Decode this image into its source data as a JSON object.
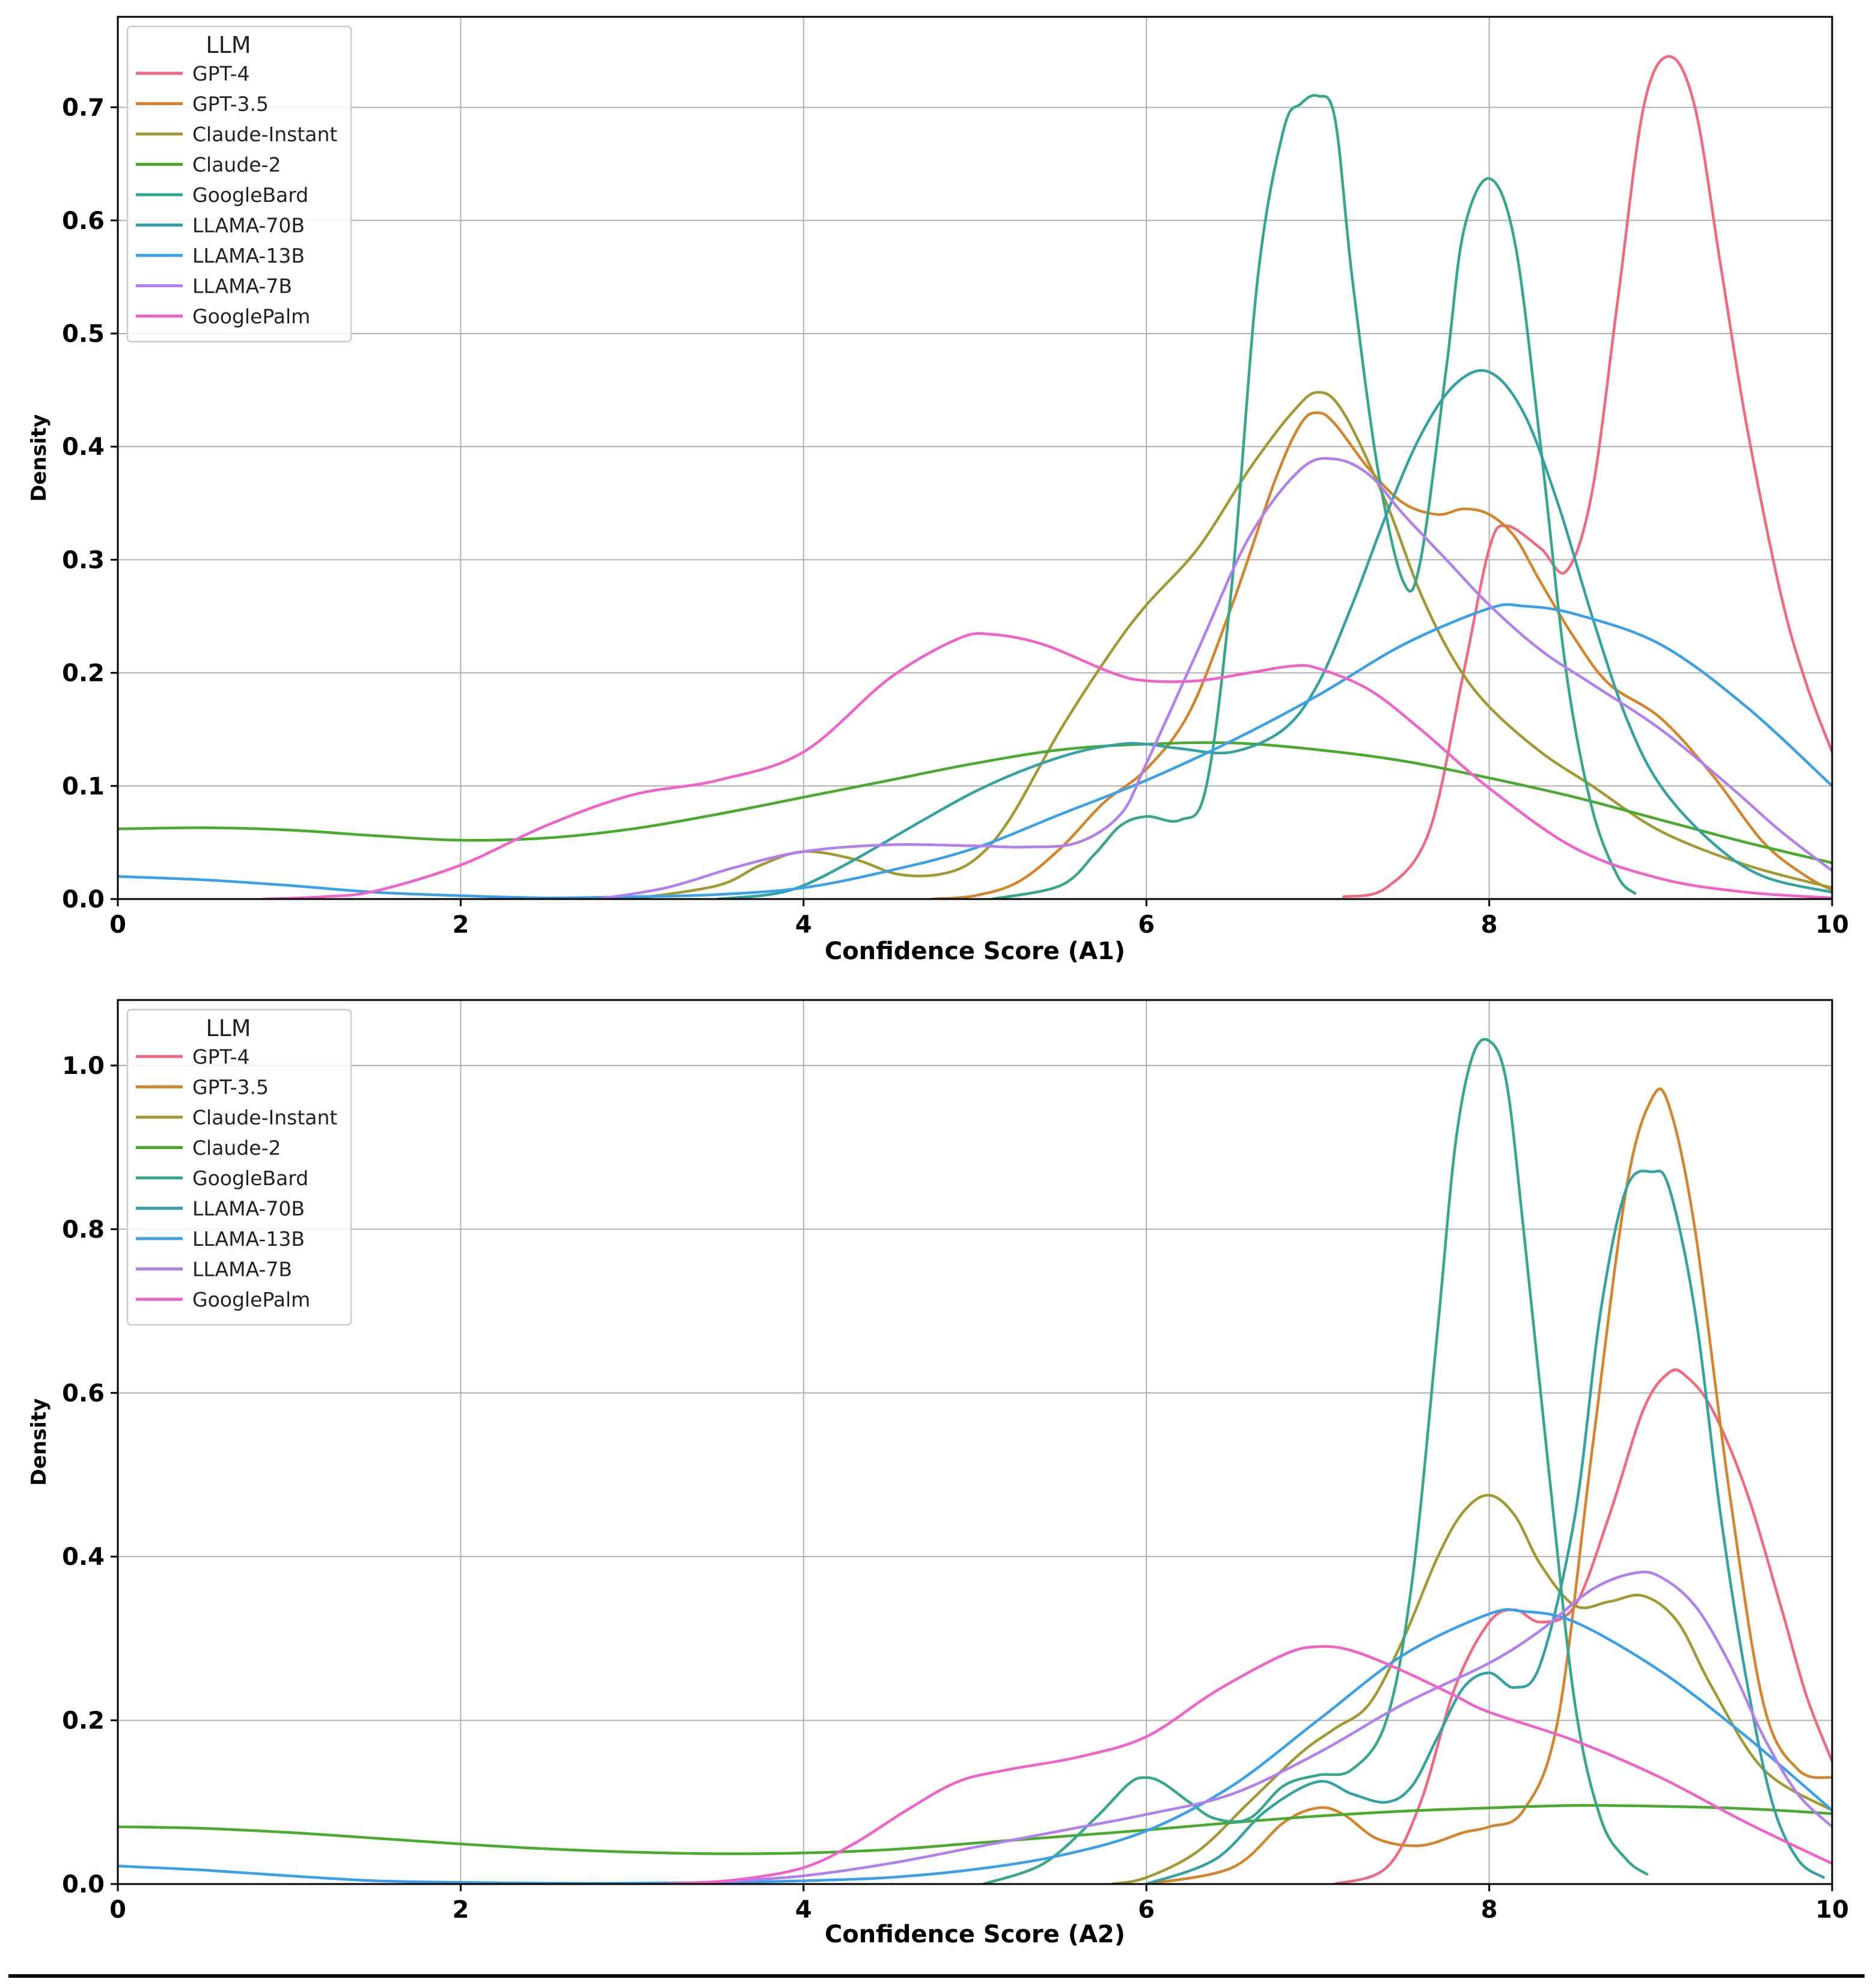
{
  "chart_data": [
    {
      "type": "line",
      "subtype": "kde",
      "xlabel": "Confidence Score (A1)",
      "ylabel": "Density",
      "xlim": [
        0,
        10
      ],
      "ylim": [
        0,
        0.78
      ],
      "xticks": [
        "0",
        "2",
        "4",
        "6",
        "8",
        "10"
      ],
      "xtick_values": [
        0,
        2,
        4,
        6,
        8,
        10
      ],
      "yticks": [
        "0.0",
        "0.1",
        "0.2",
        "0.3",
        "0.4",
        "0.5",
        "0.6",
        "0.7"
      ],
      "ytick_values": [
        0,
        0.1,
        0.2,
        0.3,
        0.4,
        0.5,
        0.6,
        0.7
      ],
      "grid": true,
      "legend": {
        "title": "LLM",
        "position": "top-left"
      },
      "series": [
        {
          "name": "GPT-4",
          "color": "#f0697e",
          "x": [
            7.15,
            7.4,
            7.65,
            7.85,
            8.0,
            8.1,
            8.3,
            8.45,
            8.6,
            8.75,
            8.9,
            9.05,
            9.2,
            9.35,
            9.5,
            9.7,
            9.85,
            10.0
          ],
          "y": [
            0.002,
            0.01,
            0.06,
            0.2,
            0.31,
            0.33,
            0.31,
            0.29,
            0.36,
            0.53,
            0.7,
            0.745,
            0.7,
            0.56,
            0.42,
            0.27,
            0.19,
            0.13
          ]
        },
        {
          "name": "GPT-3.5",
          "color": "#d4852c",
          "x": [
            4.75,
            5.0,
            5.25,
            5.5,
            5.75,
            6.0,
            6.25,
            6.5,
            6.75,
            6.9,
            7.0,
            7.1,
            7.3,
            7.5,
            7.7,
            7.85,
            8.0,
            8.15,
            8.3,
            8.5,
            8.7,
            9.0,
            9.3,
            9.6,
            9.85,
            10.0
          ],
          "y": [
            0.0,
            0.003,
            0.015,
            0.045,
            0.085,
            0.115,
            0.165,
            0.26,
            0.37,
            0.42,
            0.43,
            0.42,
            0.38,
            0.35,
            0.34,
            0.345,
            0.34,
            0.32,
            0.28,
            0.23,
            0.19,
            0.16,
            0.11,
            0.05,
            0.02,
            0.008
          ]
        },
        {
          "name": "Claude-Instant",
          "color": "#a19932",
          "x": [
            3.0,
            3.5,
            3.75,
            4.0,
            4.3,
            4.55,
            4.8,
            5.0,
            5.2,
            5.5,
            5.8,
            6.0,
            6.3,
            6.6,
            6.85,
            7.0,
            7.15,
            7.4,
            7.6,
            7.8,
            8.0,
            8.3,
            8.6,
            9.0,
            9.5,
            10.0
          ],
          "y": [
            0.0,
            0.012,
            0.03,
            0.042,
            0.035,
            0.022,
            0.022,
            0.035,
            0.07,
            0.15,
            0.22,
            0.26,
            0.31,
            0.38,
            0.43,
            0.448,
            0.43,
            0.35,
            0.27,
            0.21,
            0.17,
            0.13,
            0.1,
            0.06,
            0.03,
            0.01
          ]
        },
        {
          "name": "Claude-2",
          "color": "#4aa92f",
          "x": [
            0.0,
            0.5,
            1.0,
            1.5,
            2.0,
            2.5,
            3.0,
            3.5,
            4.0,
            4.5,
            5.0,
            5.5,
            6.0,
            6.5,
            7.0,
            7.5,
            8.0,
            8.5,
            9.0,
            9.5,
            10.0
          ],
          "y": [
            0.062,
            0.063,
            0.061,
            0.056,
            0.052,
            0.054,
            0.062,
            0.075,
            0.09,
            0.105,
            0.12,
            0.132,
            0.137,
            0.138,
            0.132,
            0.122,
            0.107,
            0.09,
            0.07,
            0.05,
            0.032
          ]
        },
        {
          "name": "GoogleBard",
          "color": "#35a78b",
          "x": [
            5.1,
            5.5,
            5.7,
            5.85,
            6.0,
            6.2,
            6.35,
            6.5,
            6.65,
            6.8,
            6.9,
            7.0,
            7.1,
            7.2,
            7.35,
            7.5,
            7.6,
            7.75,
            7.85,
            8.0,
            8.15,
            8.3,
            8.45,
            8.6,
            8.75,
            8.85
          ],
          "y": [
            0.0,
            0.012,
            0.04,
            0.065,
            0.073,
            0.07,
            0.1,
            0.28,
            0.55,
            0.68,
            0.703,
            0.71,
            0.69,
            0.55,
            0.38,
            0.28,
            0.3,
            0.47,
            0.59,
            0.637,
            0.58,
            0.4,
            0.2,
            0.08,
            0.02,
            0.005
          ]
        },
        {
          "name": "LLAMA-70B",
          "color": "#34a2a2",
          "x": [
            3.5,
            3.8,
            4.0,
            4.3,
            4.7,
            5.0,
            5.3,
            5.6,
            5.85,
            6.0,
            6.2,
            6.5,
            6.8,
            7.0,
            7.2,
            7.4,
            7.6,
            7.8,
            8.0,
            8.2,
            8.4,
            8.6,
            8.8,
            9.0,
            9.3,
            9.6,
            10.0
          ],
          "y": [
            0.0,
            0.004,
            0.012,
            0.035,
            0.07,
            0.095,
            0.115,
            0.13,
            0.137,
            0.137,
            0.133,
            0.13,
            0.15,
            0.19,
            0.26,
            0.34,
            0.41,
            0.455,
            0.466,
            0.43,
            0.35,
            0.25,
            0.16,
            0.1,
            0.05,
            0.02,
            0.006
          ]
        },
        {
          "name": "LLAMA-13B",
          "color": "#3aa0e8",
          "x": [
            0.0,
            0.5,
            1.0,
            1.5,
            2.0,
            2.5,
            3.0,
            3.5,
            4.0,
            4.5,
            5.0,
            5.5,
            6.0,
            6.5,
            7.0,
            7.5,
            8.0,
            8.2,
            8.5,
            9.0,
            9.5,
            10.0
          ],
          "y": [
            0.02,
            0.017,
            0.012,
            0.006,
            0.003,
            0.001,
            0.002,
            0.004,
            0.01,
            0.025,
            0.045,
            0.075,
            0.105,
            0.14,
            0.18,
            0.225,
            0.257,
            0.259,
            0.252,
            0.225,
            0.17,
            0.1
          ]
        },
        {
          "name": "LLAMA-7B",
          "color": "#b27ff0",
          "x": [
            2.8,
            3.2,
            3.6,
            4.0,
            4.5,
            5.0,
            5.3,
            5.6,
            5.85,
            6.0,
            6.3,
            6.6,
            6.9,
            7.1,
            7.3,
            7.5,
            7.75,
            8.0,
            8.3,
            8.6,
            9.0,
            9.4,
            9.7,
            10.0
          ],
          "y": [
            0.0,
            0.01,
            0.028,
            0.042,
            0.048,
            0.047,
            0.046,
            0.05,
            0.075,
            0.12,
            0.22,
            0.32,
            0.38,
            0.389,
            0.375,
            0.34,
            0.3,
            0.26,
            0.22,
            0.19,
            0.15,
            0.1,
            0.06,
            0.025
          ]
        },
        {
          "name": "GooglePalm",
          "color": "#f261c7",
          "x": [
            0.85,
            1.2,
            1.5,
            2.0,
            2.5,
            3.0,
            3.5,
            4.0,
            4.5,
            4.9,
            5.1,
            5.4,
            5.8,
            6.0,
            6.3,
            6.6,
            6.85,
            7.0,
            7.3,
            7.6,
            8.0,
            8.5,
            9.0,
            9.5,
            10.0
          ],
          "y": [
            0.0,
            0.002,
            0.007,
            0.03,
            0.065,
            0.092,
            0.105,
            0.13,
            0.195,
            0.23,
            0.234,
            0.225,
            0.2,
            0.193,
            0.193,
            0.2,
            0.206,
            0.204,
            0.185,
            0.15,
            0.098,
            0.045,
            0.018,
            0.006,
            0.001
          ]
        }
      ]
    },
    {
      "type": "line",
      "subtype": "kde",
      "xlabel": "Confidence Score (A2)",
      "ylabel": "Density",
      "xlim": [
        0,
        10
      ],
      "ylim": [
        0,
        1.08
      ],
      "xticks": [
        "0",
        "2",
        "4",
        "6",
        "8",
        "10"
      ],
      "xtick_values": [
        0,
        2,
        4,
        6,
        8,
        10
      ],
      "yticks": [
        "0.0",
        "0.2",
        "0.4",
        "0.6",
        "0.8",
        "1.0"
      ],
      "ytick_values": [
        0,
        0.2,
        0.4,
        0.6,
        0.8,
        1.0
      ],
      "grid": true,
      "legend": {
        "title": "LLM",
        "position": "top-left"
      },
      "series": [
        {
          "name": "GPT-4",
          "color": "#f0697e",
          "x": [
            7.1,
            7.4,
            7.6,
            7.8,
            8.0,
            8.15,
            8.3,
            8.5,
            8.7,
            8.9,
            9.05,
            9.15,
            9.3,
            9.5,
            9.7,
            9.85,
            10.0
          ],
          "y": [
            0.0,
            0.02,
            0.1,
            0.24,
            0.32,
            0.335,
            0.32,
            0.34,
            0.45,
            0.58,
            0.625,
            0.62,
            0.58,
            0.48,
            0.34,
            0.23,
            0.15
          ]
        },
        {
          "name": "GPT-3.5",
          "color": "#d4852c",
          "x": [
            6.0,
            6.5,
            6.8,
            7.0,
            7.15,
            7.35,
            7.6,
            7.85,
            8.0,
            8.2,
            8.4,
            8.6,
            8.8,
            8.95,
            9.05,
            9.2,
            9.4,
            9.6,
            9.8,
            10.0
          ],
          "y": [
            0.0,
            0.02,
            0.075,
            0.093,
            0.085,
            0.055,
            0.047,
            0.063,
            0.07,
            0.09,
            0.2,
            0.53,
            0.85,
            0.96,
            0.95,
            0.8,
            0.48,
            0.22,
            0.14,
            0.13
          ]
        },
        {
          "name": "Claude-Instant",
          "color": "#a19932",
          "x": [
            5.8,
            6.0,
            6.3,
            6.6,
            6.9,
            7.1,
            7.3,
            7.5,
            7.7,
            7.85,
            8.0,
            8.15,
            8.3,
            8.5,
            8.7,
            8.9,
            9.1,
            9.3,
            9.6,
            10.0
          ],
          "y": [
            0.0,
            0.008,
            0.04,
            0.1,
            0.16,
            0.19,
            0.22,
            0.3,
            0.4,
            0.455,
            0.475,
            0.45,
            0.39,
            0.34,
            0.345,
            0.352,
            0.32,
            0.24,
            0.14,
            0.09
          ]
        },
        {
          "name": "Claude-2",
          "color": "#4aa92f",
          "x": [
            0.0,
            0.5,
            1.0,
            1.5,
            2.0,
            2.5,
            3.0,
            3.5,
            4.0,
            4.5,
            5.0,
            5.5,
            6.0,
            6.5,
            7.0,
            7.5,
            8.0,
            8.5,
            9.0,
            9.5,
            10.0
          ],
          "y": [
            0.07,
            0.068,
            0.063,
            0.056,
            0.049,
            0.043,
            0.039,
            0.037,
            0.038,
            0.042,
            0.05,
            0.058,
            0.066,
            0.075,
            0.083,
            0.089,
            0.093,
            0.096,
            0.095,
            0.092,
            0.086
          ]
        },
        {
          "name": "GoogleBard",
          "color": "#35a78b",
          "x": [
            5.05,
            5.4,
            5.7,
            5.9,
            6.0,
            6.1,
            6.25,
            6.4,
            6.6,
            6.8,
            7.0,
            7.2,
            7.4,
            7.55,
            7.7,
            7.8,
            7.9,
            8.0,
            8.1,
            8.2,
            8.35,
            8.5,
            8.65,
            8.8,
            8.92
          ],
          "y": [
            0.0,
            0.025,
            0.08,
            0.123,
            0.13,
            0.123,
            0.1,
            0.08,
            0.08,
            0.12,
            0.133,
            0.14,
            0.2,
            0.37,
            0.68,
            0.9,
            1.01,
            1.03,
            0.98,
            0.8,
            0.5,
            0.22,
            0.08,
            0.03,
            0.012
          ]
        },
        {
          "name": "LLAMA-70B",
          "color": "#34a2a2",
          "x": [
            6.0,
            6.4,
            6.7,
            7.0,
            7.2,
            7.4,
            7.55,
            7.7,
            7.85,
            8.0,
            8.15,
            8.3,
            8.5,
            8.65,
            8.8,
            8.95,
            9.05,
            9.2,
            9.35,
            9.5,
            9.65,
            9.8,
            9.95
          ],
          "y": [
            0.0,
            0.03,
            0.09,
            0.125,
            0.11,
            0.1,
            0.12,
            0.18,
            0.24,
            0.258,
            0.24,
            0.27,
            0.45,
            0.7,
            0.85,
            0.87,
            0.85,
            0.7,
            0.45,
            0.25,
            0.1,
            0.03,
            0.008
          ]
        },
        {
          "name": "LLAMA-13B",
          "color": "#3aa0e8",
          "x": [
            0.0,
            0.5,
            1.0,
            1.5,
            2.0,
            2.5,
            3.0,
            3.5,
            4.0,
            4.5,
            5.0,
            5.5,
            6.0,
            6.5,
            7.0,
            7.5,
            8.0,
            8.2,
            8.5,
            9.0,
            9.5,
            10.0
          ],
          "y": [
            0.022,
            0.017,
            0.01,
            0.004,
            0.002,
            0.001,
            0.001,
            0.002,
            0.004,
            0.008,
            0.018,
            0.035,
            0.065,
            0.12,
            0.2,
            0.28,
            0.33,
            0.333,
            0.32,
            0.26,
            0.18,
            0.09
          ]
        },
        {
          "name": "LLAMA-7B",
          "color": "#b27ff0",
          "x": [
            3.2,
            3.6,
            4.0,
            4.5,
            5.0,
            5.5,
            6.0,
            6.5,
            7.0,
            7.5,
            8.0,
            8.3,
            8.6,
            8.85,
            9.0,
            9.2,
            9.4,
            9.6,
            9.8,
            10.0
          ],
          "y": [
            0.0,
            0.004,
            0.01,
            0.025,
            0.045,
            0.065,
            0.085,
            0.11,
            0.16,
            0.22,
            0.27,
            0.31,
            0.36,
            0.38,
            0.375,
            0.34,
            0.27,
            0.18,
            0.11,
            0.07
          ]
        },
        {
          "name": "GooglePalm",
          "color": "#f261c7",
          "x": [
            3.2,
            3.6,
            4.0,
            4.3,
            4.6,
            4.9,
            5.2,
            5.6,
            6.0,
            6.4,
            6.8,
            7.0,
            7.2,
            7.5,
            7.8,
            8.0,
            8.5,
            9.0,
            9.5,
            10.0
          ],
          "y": [
            0.0,
            0.005,
            0.02,
            0.05,
            0.09,
            0.125,
            0.14,
            0.155,
            0.18,
            0.235,
            0.28,
            0.29,
            0.285,
            0.26,
            0.23,
            0.21,
            0.175,
            0.13,
            0.075,
            0.025
          ]
        }
      ]
    }
  ]
}
